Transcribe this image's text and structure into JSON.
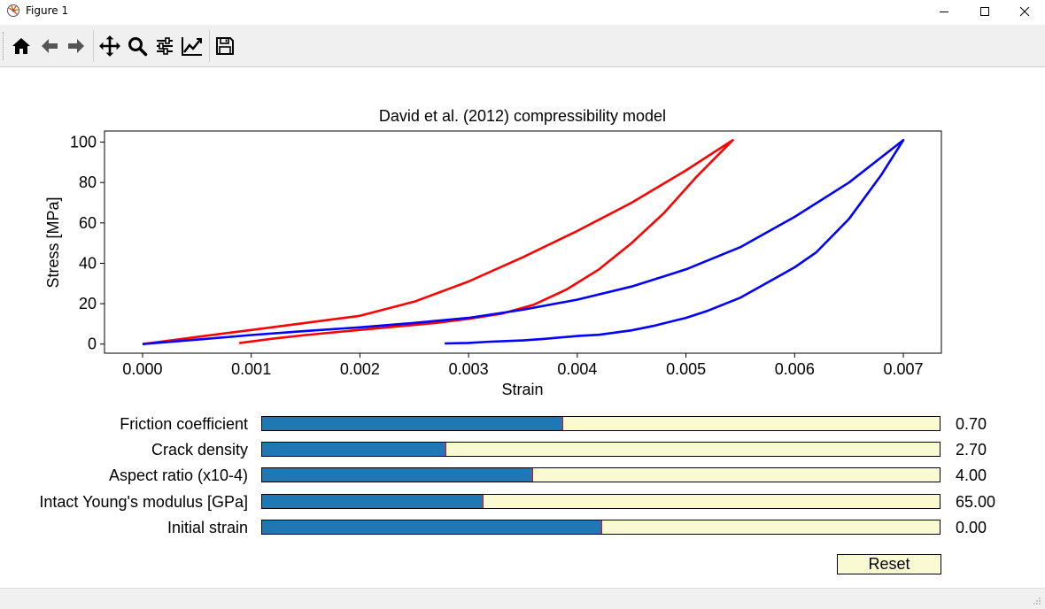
{
  "window": {
    "title": "Figure 1",
    "minimize_icon": "minimize-icon",
    "maximize_icon": "maximize-icon",
    "close_icon": "close-icon"
  },
  "toolbar": {
    "buttons": [
      {
        "name": "home-button",
        "icon": "home-icon"
      },
      {
        "name": "back-button",
        "icon": "arrow-left-icon"
      },
      {
        "name": "forward-button",
        "icon": "arrow-right-icon"
      },
      {
        "name": "pan-button",
        "icon": "move-icon"
      },
      {
        "name": "zoom-button",
        "icon": "magnifier-icon"
      },
      {
        "name": "configure-subplots-button",
        "icon": "sliders-icon"
      },
      {
        "name": "edit-axis-button",
        "icon": "line-chart-icon"
      },
      {
        "name": "save-button",
        "icon": "floppy-disk-icon"
      }
    ]
  },
  "chart_data": {
    "type": "line",
    "title": "David et al. (2012) compressibility model",
    "xlabel": "Strain",
    "ylabel": "Stress [MPa]",
    "xlim": [
      -0.00035,
      0.00735
    ],
    "ylim": [
      -4.5,
      105.5
    ],
    "xticks": [
      "0.000",
      "0.001",
      "0.002",
      "0.003",
      "0.004",
      "0.005",
      "0.006",
      "0.007"
    ],
    "yticks": [
      "0",
      "20",
      "40",
      "60",
      "80",
      "100"
    ],
    "grid": false,
    "series": [
      {
        "color": "#ff0000",
        "x": [
          0.0,
          0.0005,
          0.001,
          0.0015,
          0.002,
          0.0025,
          0.003,
          0.0035,
          0.004,
          0.0045,
          0.005,
          0.00543,
          0.0051,
          0.0048,
          0.0045,
          0.0042,
          0.0039,
          0.0036,
          0.0033,
          0.003,
          0.0027,
          0.0024,
          0.0021,
          0.0018,
          0.0015,
          0.0012,
          0.00089
        ],
        "y": [
          0,
          3.5,
          7,
          10.5,
          14,
          21,
          31,
          43,
          56,
          70,
          86,
          101,
          83,
          65,
          50,
          37,
          27,
          19.5,
          15,
          12.5,
          10.5,
          9,
          7.5,
          6,
          4.5,
          2.7,
          0.5
        ]
      },
      {
        "color": "#0000ff",
        "x": [
          0.0,
          0.0005,
          0.001,
          0.0015,
          0.002,
          0.0025,
          0.003,
          0.0035,
          0.004,
          0.0045,
          0.005,
          0.0055,
          0.006,
          0.0065,
          0.007,
          0.0068,
          0.0065,
          0.0062,
          0.006,
          0.0057,
          0.0055,
          0.0052,
          0.005,
          0.0047,
          0.0045,
          0.0042,
          0.004,
          0.0037,
          0.0035,
          0.0032,
          0.003,
          0.00278
        ],
        "y": [
          0,
          2.2,
          4.5,
          6.5,
          8.3,
          10.5,
          13,
          17,
          22,
          28.5,
          37,
          48,
          63,
          80,
          101,
          84,
          62,
          45.5,
          38,
          29,
          23,
          16.5,
          13,
          9,
          6.8,
          4.6,
          4,
          2.6,
          1.8,
          1.2,
          0.6,
          0.3
        ]
      }
    ]
  },
  "sliders": [
    {
      "label": "Friction coefficient",
      "value": "0.70",
      "fraction": 0.443
    },
    {
      "label": "Crack density",
      "value": "2.70",
      "fraction": 0.27
    },
    {
      "label": "Aspect ratio (x10-4)",
      "value": "4.00",
      "fraction": 0.399
    },
    {
      "label": "Intact Young's modulus [GPa]",
      "value": "65.00",
      "fraction": 0.325
    },
    {
      "label": "Initial strain",
      "value": "0.00",
      "fraction": 0.5
    }
  ],
  "reset_label": "Reset"
}
